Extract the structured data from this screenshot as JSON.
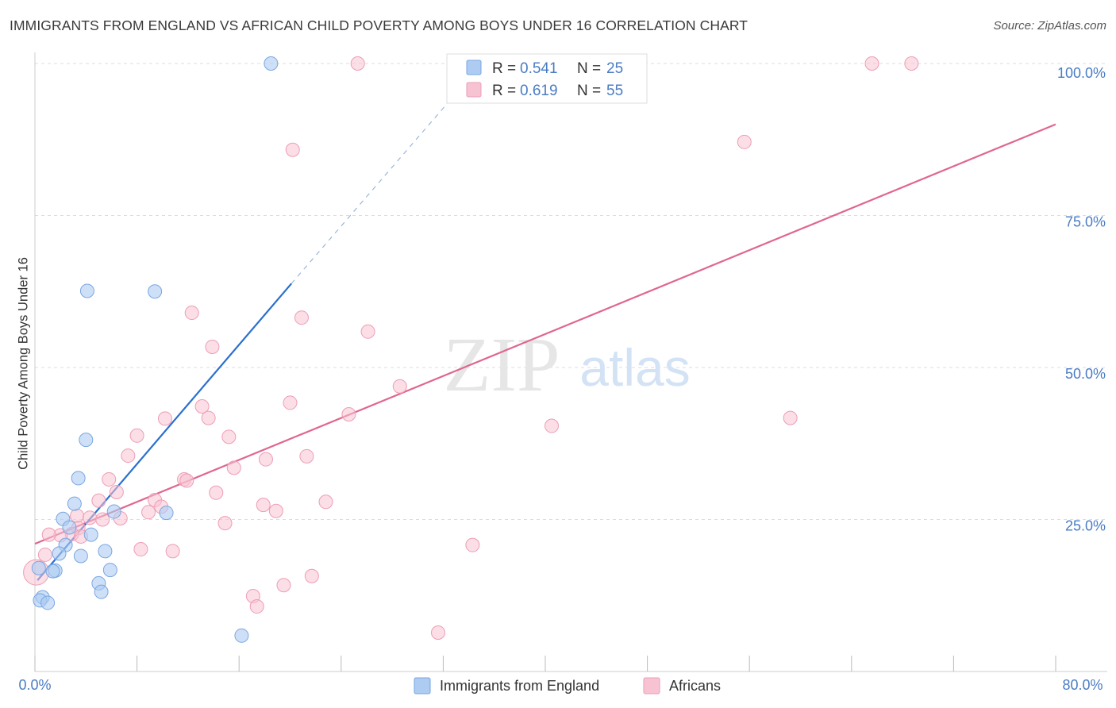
{
  "header": {
    "title": "IMMIGRANTS FROM ENGLAND VS AFRICAN CHILD POVERTY AMONG BOYS UNDER 16 CORRELATION CHART",
    "source": "Source: ZipAtlas.com"
  },
  "watermark": {
    "zip": "ZIP",
    "atlas": "atlas"
  },
  "colors": {
    "blue_fill": "#aecbf2",
    "blue_stroke": "#7aa6e2",
    "blue_line": "#2a6fcf",
    "pink_fill": "#f7c3d2",
    "pink_stroke": "#ee9db5",
    "pink_line": "#e0668f",
    "tick_label": "#4a7cc4",
    "grid": "#dddddd"
  },
  "legend_stats": [
    {
      "r_label": "R = ",
      "r_value": "0.541",
      "n_label": "N = ",
      "n_value": "25"
    },
    {
      "r_label": "R = ",
      "r_value": "0.619",
      "n_label": "N = ",
      "n_value": "55"
    }
  ],
  "chart_data": {
    "type": "scatter",
    "title": "IMMIGRANTS FROM ENGLAND VS AFRICAN CHILD POVERTY AMONG BOYS UNDER 16 CORRELATION CHART",
    "xlabel": "",
    "ylabel": "Child Poverty Among Boys Under 16",
    "xlim": [
      0,
      80
    ],
    "ylim": [
      0,
      100
    ],
    "x_tick_labels": [
      "0.0%",
      "80.0%"
    ],
    "y_ticks": [
      25,
      50,
      75,
      100
    ],
    "y_tick_labels": [
      "25.0%",
      "50.0%",
      "75.0%",
      "100.0%"
    ],
    "grid": true,
    "legend_position": "bottom",
    "series": [
      {
        "name": "Immigrants from England",
        "r": 0.541,
        "n": 25,
        "trend": {
          "x": [
            0.2,
            20.1
          ],
          "y": [
            15.0,
            63.8
          ],
          "dashed_to": [
            34.0,
            97.5
          ]
        },
        "points": [
          [
            18.5,
            100
          ],
          [
            4.1,
            62.6
          ],
          [
            9.4,
            62.5
          ],
          [
            4.0,
            38.1
          ],
          [
            3.4,
            31.8
          ],
          [
            3.1,
            27.6
          ],
          [
            6.2,
            26.3
          ],
          [
            10.3,
            26.1
          ],
          [
            2.2,
            25.1
          ],
          [
            2.7,
            23.7
          ],
          [
            4.4,
            22.5
          ],
          [
            2.4,
            20.8
          ],
          [
            1.9,
            19.4
          ],
          [
            5.5,
            19.8
          ],
          [
            3.6,
            19.0
          ],
          [
            5.9,
            16.7
          ],
          [
            1.6,
            16.6
          ],
          [
            1.4,
            16.5
          ],
          [
            0.3,
            17.0
          ],
          [
            0.6,
            12.2
          ],
          [
            0.4,
            11.7
          ],
          [
            1.0,
            11.3
          ],
          [
            5.0,
            14.5
          ],
          [
            5.2,
            13.1
          ],
          [
            16.2,
            5.9
          ]
        ]
      },
      {
        "name": "Africans",
        "r": 0.619,
        "n": 55,
        "trend": {
          "x": [
            0.0,
            80.0
          ],
          "y": [
            21.0,
            90.0
          ]
        },
        "points": [
          [
            25.3,
            100
          ],
          [
            65.6,
            100
          ],
          [
            68.7,
            100
          ],
          [
            20.2,
            85.8
          ],
          [
            55.6,
            87.1
          ],
          [
            12.3,
            59.0
          ],
          [
            20.9,
            58.2
          ],
          [
            26.1,
            55.9
          ],
          [
            13.9,
            53.4
          ],
          [
            28.6,
            46.9
          ],
          [
            20.0,
            44.2
          ],
          [
            13.1,
            43.6
          ],
          [
            10.2,
            41.6
          ],
          [
            13.6,
            41.7
          ],
          [
            24.6,
            42.3
          ],
          [
            59.2,
            41.7
          ],
          [
            40.5,
            40.4
          ],
          [
            8.0,
            38.8
          ],
          [
            15.2,
            38.6
          ],
          [
            7.3,
            35.5
          ],
          [
            21.3,
            35.4
          ],
          [
            18.1,
            34.9
          ],
          [
            15.6,
            33.5
          ],
          [
            5.8,
            31.6
          ],
          [
            11.7,
            31.6
          ],
          [
            11.9,
            31.4
          ],
          [
            6.4,
            29.5
          ],
          [
            14.2,
            29.4
          ],
          [
            9.4,
            28.2
          ],
          [
            22.8,
            27.9
          ],
          [
            5.0,
            28.1
          ],
          [
            17.9,
            27.4
          ],
          [
            9.9,
            27.1
          ],
          [
            18.9,
            26.4
          ],
          [
            8.9,
            26.2
          ],
          [
            3.3,
            25.6
          ],
          [
            4.3,
            25.3
          ],
          [
            6.7,
            25.2
          ],
          [
            5.3,
            25.0
          ],
          [
            14.9,
            24.4
          ],
          [
            3.4,
            23.6
          ],
          [
            2.9,
            22.6
          ],
          [
            3.6,
            22.2
          ],
          [
            2.0,
            22.4
          ],
          [
            1.1,
            22.5
          ],
          [
            0.8,
            19.2
          ],
          [
            8.3,
            20.1
          ],
          [
            10.8,
            19.8
          ],
          [
            34.3,
            20.8
          ],
          [
            21.7,
            15.7
          ],
          [
            19.5,
            14.2
          ],
          [
            17.1,
            12.4
          ],
          [
            17.4,
            10.7
          ],
          [
            31.6,
            6.4
          ],
          [
            0.1,
            16.3
          ]
        ]
      }
    ]
  }
}
